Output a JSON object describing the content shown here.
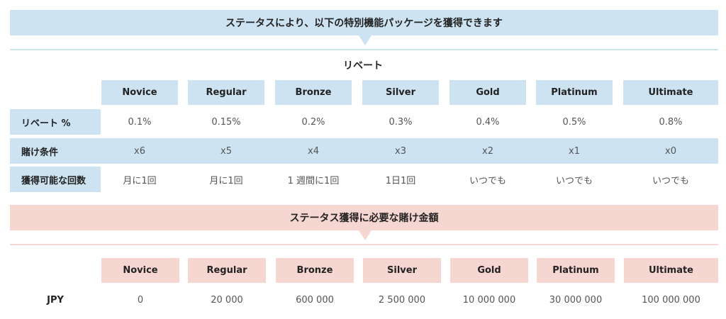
{
  "banner_top": "ステータスにより、以下の特別機能パッケージを獲得できます",
  "rebate_title": "リベート",
  "tiers": [
    "Novice",
    "Regular",
    "Bronze",
    "Silver",
    "Gold",
    "Platinum",
    "Ultimate"
  ],
  "rows": [
    {
      "label": "リベート %",
      "values": [
        "0.1%",
        "0.15%",
        "0.2%",
        "0.3%",
        "0.4%",
        "0.5%",
        "0.8%"
      ]
    },
    {
      "label": "賭け条件",
      "values": [
        "x6",
        "x5",
        "x4",
        "x3",
        "x2",
        "x1",
        "x0"
      ]
    },
    {
      "label": "獲得可能な回数",
      "values": [
        "月に1回",
        "月に1回",
        "1 週間に1回",
        "1日1回",
        "いつでも",
        "いつでも",
        "いつでも"
      ]
    }
  ],
  "banner_bottom": "ステータス獲得に必要な賭け金額",
  "jpy": {
    "label": "JPY",
    "values": [
      "0",
      "20 000",
      "600 000",
      "2 500 000",
      "10 000 000",
      "30 000 000",
      "100 000 000"
    ]
  },
  "colors": {
    "blue": "#cde3f2",
    "pink": "#f6d6d1"
  }
}
